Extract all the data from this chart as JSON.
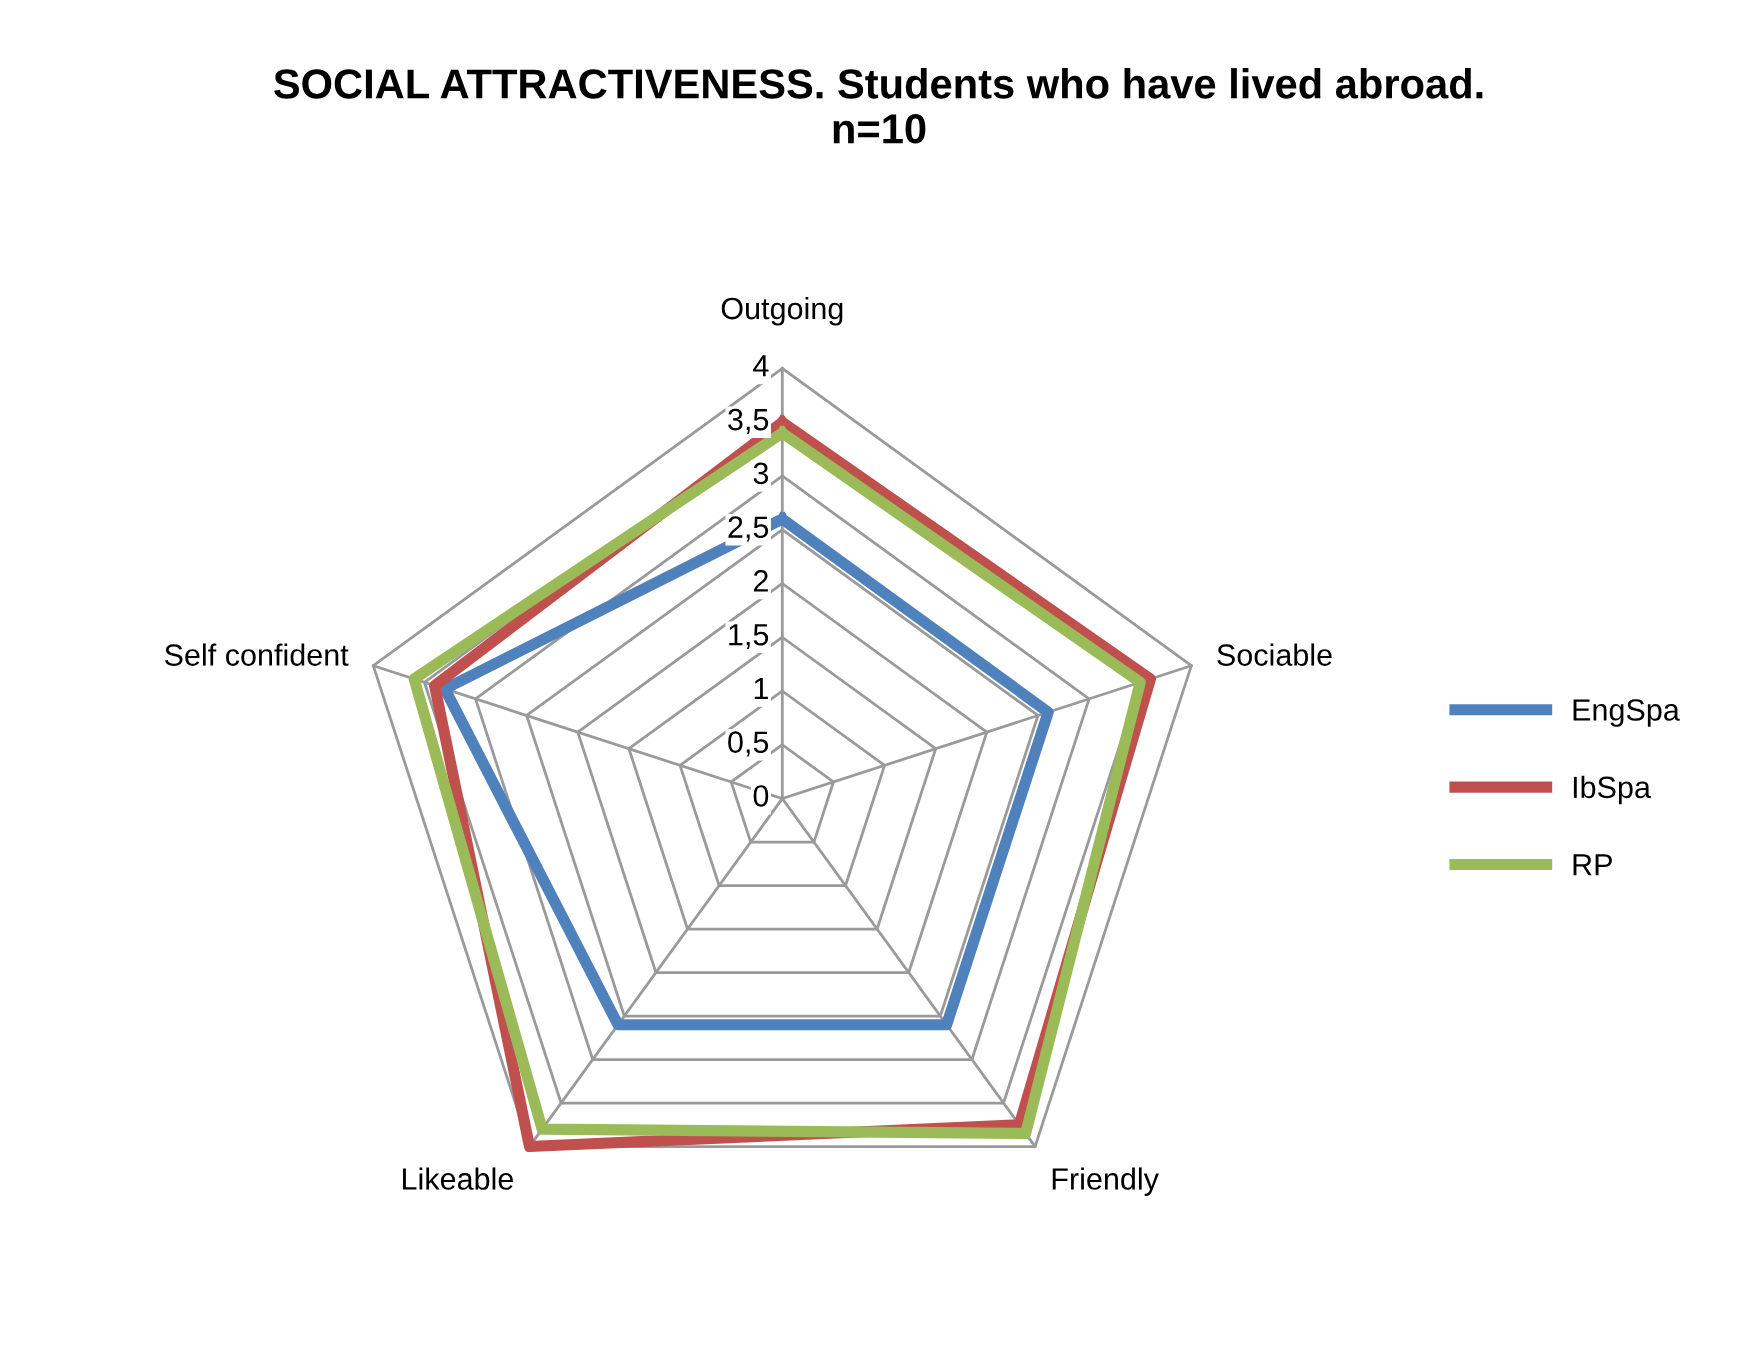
{
  "chart_data": {
    "type": "radar",
    "title": "SOCIAL ATTRACTIVENESS. Students who have lived abroad.\nn=10",
    "categories": [
      "Outgoing",
      "Sociable",
      "Friendly",
      "Likeable",
      "Self confident"
    ],
    "series": [
      {
        "name": "EngSpa",
        "color": "#4f81bd",
        "values": [
          2.6,
          2.6,
          2.6,
          2.6,
          3.3
        ]
      },
      {
        "name": "IbSpa",
        "color": "#c0504d",
        "values": [
          3.5,
          3.6,
          3.75,
          4.0,
          3.4
        ]
      },
      {
        "name": "RP",
        "color": "#9bbb59",
        "values": [
          3.4,
          3.5,
          3.85,
          3.8,
          3.6
        ]
      }
    ],
    "ylim": [
      0,
      4
    ],
    "yticks": [
      0,
      {
        "value": 0.5,
        "label": "0,5"
      },
      1,
      {
        "value": 1.5,
        "label": "1,5"
      },
      2,
      {
        "value": 2.5,
        "label": "2,5"
      },
      3,
      {
        "value": 3.5,
        "label": "3,5"
      },
      4
    ],
    "grid": true,
    "legend": "right",
    "line_style": "solid",
    "marker": "none"
  }
}
